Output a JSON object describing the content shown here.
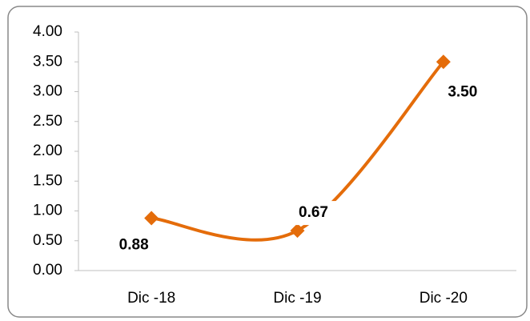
{
  "chart_data": {
    "type": "line",
    "categories": [
      "Dic -18",
      "Dic -19",
      "Dic -20"
    ],
    "values": [
      0.88,
      0.67,
      3.5
    ],
    "value_labels": [
      "0.88",
      "0.67",
      "3.50"
    ],
    "color": "#e46c0a",
    "ylim": [
      0,
      4
    ],
    "yticks": [
      {
        "value": 0,
        "label": "0.00"
      },
      {
        "value": 0.5,
        "label": "0.50"
      },
      {
        "value": 1,
        "label": "1.00"
      },
      {
        "value": 1.5,
        "label": "1.50"
      },
      {
        "value": 2,
        "label": "2.00"
      },
      {
        "value": 2.5,
        "label": "2.50"
      },
      {
        "value": 3,
        "label": "3.00"
      },
      {
        "value": 3.5,
        "label": "3.50"
      },
      {
        "value": 4,
        "label": "4.00"
      }
    ],
    "grid": false
  }
}
